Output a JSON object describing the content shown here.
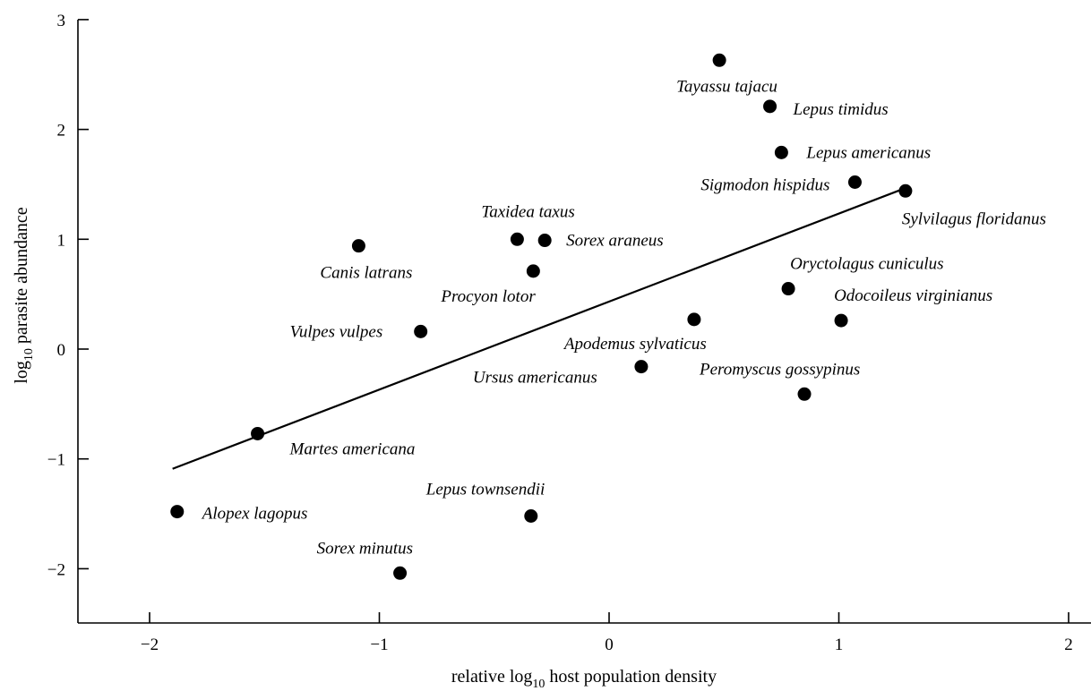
{
  "chart_data": {
    "type": "scatter",
    "xlabel_parts": [
      "relative log",
      "10",
      " host population density"
    ],
    "ylabel_parts": [
      "log",
      "10",
      " parasite abundance"
    ],
    "xlim": [
      -2.3,
      2.1
    ],
    "ylim": [
      -2.5,
      3.0
    ],
    "xticks": [
      -2,
      -1,
      0,
      1,
      2
    ],
    "yticks": [
      -2,
      -1,
      0,
      1,
      2,
      3
    ],
    "xtick_labels": [
      "−2",
      "−1",
      "0",
      "1",
      "2"
    ],
    "ytick_labels": [
      "−2",
      "−1",
      "0",
      "1",
      "2",
      "3"
    ],
    "grid": false,
    "points": [
      {
        "label": "Tayassu tajacu",
        "x": 0.48,
        "y": 2.63
      },
      {
        "label": "Lepus timidus",
        "x": 0.7,
        "y": 2.21
      },
      {
        "label": "Lepus americanus",
        "x": 0.75,
        "y": 1.79
      },
      {
        "label": "Sigmodon hispidus",
        "x": 1.07,
        "y": 1.52
      },
      {
        "label": "Sylvilagus floridanus",
        "x": 1.29,
        "y": 1.44
      },
      {
        "label": "Taxidea taxus",
        "x": -0.4,
        "y": 1.0
      },
      {
        "label": "Sorex araneus",
        "x": -0.28,
        "y": 0.99
      },
      {
        "label": "Canis latrans",
        "x": -1.09,
        "y": 0.94
      },
      {
        "label": "Procyon lotor",
        "x": -0.33,
        "y": 0.71
      },
      {
        "label": "Oryctolagus cuniculus",
        "x": 0.78,
        "y": 0.55
      },
      {
        "label": "Odocoileus virginianus",
        "x": 1.01,
        "y": 0.26
      },
      {
        "label": "Apodemus sylvaticus",
        "x": 0.37,
        "y": 0.27
      },
      {
        "label": "Vulpes vulpes",
        "x": -0.82,
        "y": 0.16
      },
      {
        "label": "Ursus americanus",
        "x": 0.14,
        "y": -0.16
      },
      {
        "label": "Peromyscus gossypinus",
        "x": 0.85,
        "y": -0.41
      },
      {
        "label": "Martes americana",
        "x": -1.53,
        "y": -0.77
      },
      {
        "label": "Alopex lagopus",
        "x": -1.88,
        "y": -1.48
      },
      {
        "label": "Lepus townsendii",
        "x": -0.34,
        "y": -1.52
      },
      {
        "label": "Sorex minutus",
        "x": -0.91,
        "y": -2.04
      }
    ],
    "fit_line": {
      "x": [
        -1.9,
        1.27
      ],
      "y": [
        -1.09,
        1.45
      ]
    }
  }
}
